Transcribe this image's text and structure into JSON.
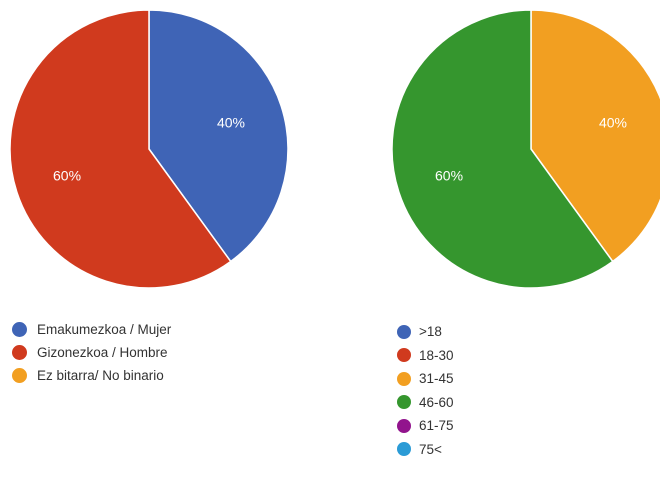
{
  "chart_data": [
    {
      "type": "pie",
      "series": [
        {
          "name": "Emakumezkoa / Mujer",
          "value": 40,
          "label": "40%",
          "color": "#3f64b6"
        },
        {
          "name": "Gizonezkoa / Hombre",
          "value": 60,
          "label": "60%",
          "color": "#d03a1e"
        },
        {
          "name": "Ez bitarra/ No binario",
          "value": 0,
          "label": "",
          "color": "#f29f21"
        }
      ],
      "legend": "bottom",
      "start_angle_deg": 90,
      "direction": "clockwise"
    },
    {
      "type": "pie",
      "series": [
        {
          "name": ">18",
          "value": 0,
          "label": "",
          "color": "#3f64b6"
        },
        {
          "name": "18-30",
          "value": 0,
          "label": "",
          "color": "#d03a1e"
        },
        {
          "name": "31-45",
          "value": 40,
          "label": "40%",
          "color": "#f29f21"
        },
        {
          "name": "46-60",
          "value": 60,
          "label": "60%",
          "color": "#35962e"
        },
        {
          "name": "61-75",
          "value": 0,
          "label": "",
          "color": "#92148d"
        },
        {
          "name": "75<",
          "value": 0,
          "label": "",
          "color": "#2b9bd6"
        }
      ],
      "legend": "bottom",
      "start_angle_deg": 90,
      "direction": "clockwise"
    }
  ]
}
